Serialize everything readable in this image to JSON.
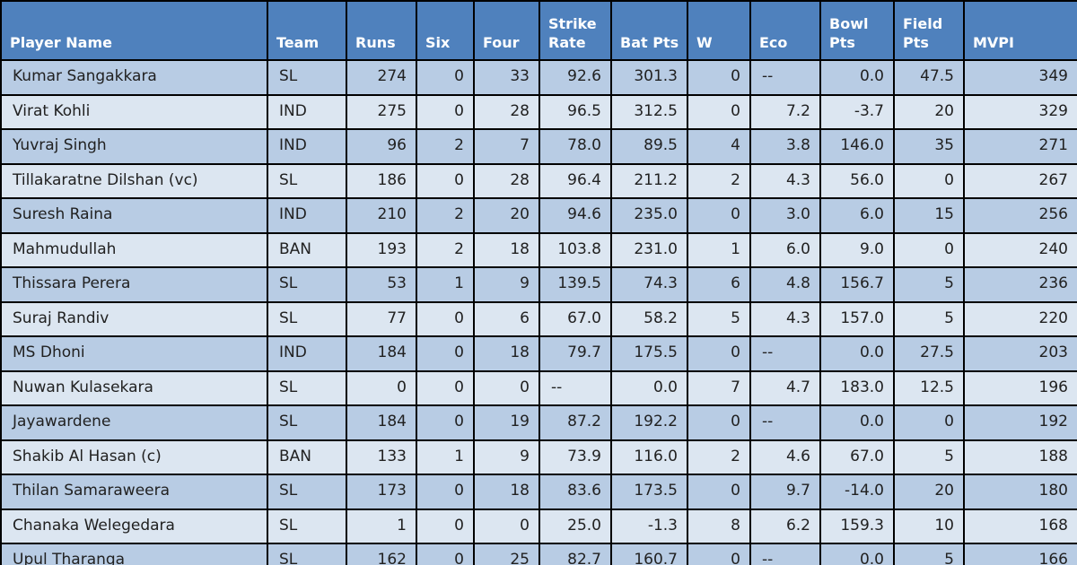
{
  "colors": {
    "header_bg": "#4F81BD",
    "header_text": "#FFFFFF",
    "row_odd": "#B8CCE4",
    "row_even": "#DCE6F1",
    "border": "#000000",
    "cell_text": "#212121"
  },
  "table": {
    "columns": [
      {
        "key": "player",
        "label": "Player Name",
        "align": "left"
      },
      {
        "key": "team",
        "label": "Team",
        "align": "left"
      },
      {
        "key": "runs",
        "label": "Runs",
        "align": "right"
      },
      {
        "key": "six",
        "label": "Six",
        "align": "right"
      },
      {
        "key": "four",
        "label": "Four",
        "align": "right"
      },
      {
        "key": "strike_rate",
        "label": "Strike\nRate",
        "align": "right"
      },
      {
        "key": "bat_pts",
        "label": "Bat Pts",
        "align": "right"
      },
      {
        "key": "wickets",
        "label": "W",
        "align": "right"
      },
      {
        "key": "eco",
        "label": "Eco",
        "align": "right"
      },
      {
        "key": "bowl_pts",
        "label": "Bowl\nPts",
        "align": "right"
      },
      {
        "key": "field_pts",
        "label": "Field\nPts",
        "align": "right"
      },
      {
        "key": "mvpi",
        "label": "MVPI",
        "align": "right"
      }
    ],
    "rows": [
      [
        "Kumar Sangakkara",
        "SL",
        "274",
        "0",
        "33",
        "92.6",
        "301.3",
        "0",
        "--",
        "0.0",
        "47.5",
        "349"
      ],
      [
        "Virat Kohli",
        "IND",
        "275",
        "0",
        "28",
        "96.5",
        "312.5",
        "0",
        "7.2",
        "-3.7",
        "20",
        "329"
      ],
      [
        "Yuvraj Singh",
        "IND",
        "96",
        "2",
        "7",
        "78.0",
        "89.5",
        "4",
        "3.8",
        "146.0",
        "35",
        "271"
      ],
      [
        "Tillakaratne Dilshan (vc)",
        "SL",
        "186",
        "0",
        "28",
        "96.4",
        "211.2",
        "2",
        "4.3",
        "56.0",
        "0",
        "267"
      ],
      [
        "Suresh Raina",
        "IND",
        "210",
        "2",
        "20",
        "94.6",
        "235.0",
        "0",
        "3.0",
        "6.0",
        "15",
        "256"
      ],
      [
        "Mahmudullah",
        "BAN",
        "193",
        "2",
        "18",
        "103.8",
        "231.0",
        "1",
        "6.0",
        "9.0",
        "0",
        "240"
      ],
      [
        "Thissara Perera",
        "SL",
        "53",
        "1",
        "9",
        "139.5",
        "74.3",
        "6",
        "4.8",
        "156.7",
        "5",
        "236"
      ],
      [
        "Suraj Randiv",
        "SL",
        "77",
        "0",
        "6",
        "67.0",
        "58.2",
        "5",
        "4.3",
        "157.0",
        "5",
        "220"
      ],
      [
        "MS Dhoni",
        "IND",
        "184",
        "0",
        "18",
        "79.7",
        "175.5",
        "0",
        "--",
        "0.0",
        "27.5",
        "203"
      ],
      [
        "Nuwan Kulasekara",
        "SL",
        "0",
        "0",
        "0",
        "--",
        "0.0",
        "7",
        "4.7",
        "183.0",
        "12.5",
        "196"
      ],
      [
        "Jayawardene",
        "SL",
        "184",
        "0",
        "19",
        "87.2",
        "192.2",
        "0",
        "--",
        "0.0",
        "0",
        "192"
      ],
      [
        "Shakib Al Hasan (c)",
        "BAN",
        "133",
        "1",
        "9",
        "73.9",
        "116.0",
        "2",
        "4.6",
        "67.0",
        "5",
        "188"
      ],
      [
        "Thilan Samaraweera",
        "SL",
        "173",
        "0",
        "18",
        "83.6",
        "173.5",
        "0",
        "9.7",
        "-14.0",
        "20",
        "180"
      ],
      [
        "Chanaka Welegedara",
        "SL",
        "1",
        "0",
        "0",
        "25.0",
        "-1.3",
        "8",
        "6.2",
        "159.3",
        "10",
        "168"
      ],
      [
        "Upul Tharanga",
        "SL",
        "162",
        "0",
        "25",
        "82.7",
        "160.7",
        "0",
        "--",
        "0.0",
        "5",
        "166"
      ]
    ]
  }
}
